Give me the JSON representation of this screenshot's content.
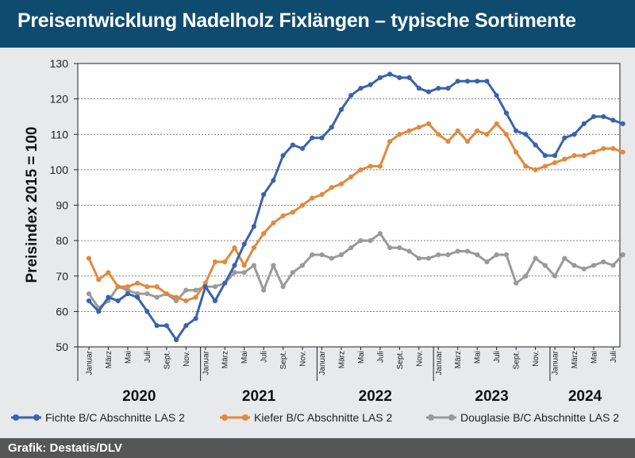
{
  "title": "Preisentwicklung Nadelholz Fixlängen – typische Sortimente",
  "source": "Grafik: Destatis/DLV",
  "chart_data": {
    "type": "line",
    "ylabel": "Preisindex 2015 = 100",
    "ylim": [
      50,
      130
    ],
    "yticks": [
      50,
      60,
      70,
      80,
      90,
      100,
      110,
      120,
      130
    ],
    "grid": true,
    "legend_position": "bottom",
    "month_labels": [
      "Januar",
      "März",
      "Mai",
      "Juli",
      "Sept.",
      "Nov."
    ],
    "years": [
      "2020",
      "2021",
      "2022",
      "2023",
      "2024"
    ],
    "x_start": "2020-01",
    "months": 56,
    "series": [
      {
        "name": "Fichte B/C Abschnitte LAS 2",
        "color": "#3a63ad",
        "values": [
          63,
          60,
          64,
          63,
          65,
          64,
          60,
          56,
          56,
          52,
          56,
          58,
          67,
          63,
          68,
          73,
          79,
          84,
          93,
          97,
          104,
          107,
          106,
          109,
          109,
          112,
          117,
          121,
          123,
          124,
          126,
          127,
          126,
          126,
          123,
          122,
          123,
          123,
          125,
          125,
          125,
          125,
          121,
          116,
          111,
          110,
          107,
          104,
          104,
          109,
          110,
          113,
          115,
          115,
          114,
          113
        ]
      },
      {
        "name": "Kiefer B/C Abschnitte LAS 2",
        "color": "#e08a3e",
        "values": [
          75,
          69,
          71,
          67,
          67,
          68,
          67,
          67,
          65,
          64,
          63,
          64,
          68,
          74,
          74,
          78,
          73,
          78,
          82,
          85,
          87,
          88,
          90,
          92,
          93,
          95,
          96,
          98,
          100,
          101,
          101,
          108,
          110,
          111,
          112,
          113,
          110,
          108,
          111,
          108,
          111,
          110,
          113,
          110,
          105,
          101,
          100,
          101,
          102,
          103,
          104,
          104,
          105,
          106,
          106,
          105
        ]
      },
      {
        "name": "Douglasie B/C Abschnitte LAS 2",
        "color": "#9a9a9a",
        "values": [
          65,
          61,
          63,
          67,
          66,
          65,
          65,
          64,
          65,
          63,
          66,
          66,
          67,
          67,
          68,
          71,
          71,
          73,
          66,
          73,
          67,
          71,
          73,
          76,
          76,
          75,
          76,
          78,
          80,
          80,
          82,
          78,
          78,
          77,
          75,
          75,
          76,
          76,
          77,
          77,
          76,
          74,
          76,
          76,
          68,
          70,
          75,
          73,
          70,
          75,
          73,
          72,
          73,
          74,
          73,
          76
        ]
      }
    ]
  }
}
